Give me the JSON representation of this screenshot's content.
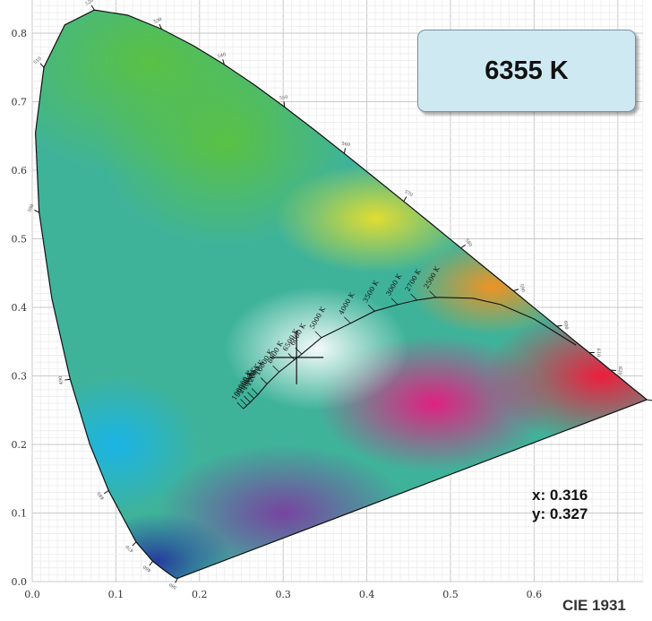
{
  "chart_data": {
    "type": "scatter",
    "title": "",
    "xlabel": "",
    "ylabel": "",
    "xlim": [
      0,
      0.73
    ],
    "ylim": [
      0,
      0.85
    ],
    "x_ticks": [
      "0.0",
      "0.1",
      "0.2",
      "0.3",
      "0.4",
      "0.5",
      "0.6"
    ],
    "y_ticks": [
      "0.0",
      "0.1",
      "0.2",
      "0.3",
      "0.4",
      "0.5",
      "0.6",
      "0.7",
      "0.8"
    ],
    "grid": true,
    "spectral_locus": [
      [
        0.1741,
        0.005
      ],
      [
        0.1738,
        0.0049
      ],
      [
        0.1733,
        0.0048
      ],
      [
        0.1726,
        0.0048
      ],
      [
        0.1714,
        0.0051
      ],
      [
        0.1689,
        0.0069
      ],
      [
        0.1644,
        0.0109
      ],
      [
        0.1566,
        0.0177
      ],
      [
        0.144,
        0.0297
      ],
      [
        0.1241,
        0.0578
      ],
      [
        0.0913,
        0.1327
      ],
      [
        0.0687,
        0.2007
      ],
      [
        0.0454,
        0.295
      ],
      [
        0.0235,
        0.4127
      ],
      [
        0.0082,
        0.5384
      ],
      [
        0.0039,
        0.6548
      ],
      [
        0.0139,
        0.7502
      ],
      [
        0.0389,
        0.812
      ],
      [
        0.0743,
        0.8338
      ],
      [
        0.1142,
        0.8262
      ],
      [
        0.1547,
        0.8059
      ],
      [
        0.1929,
        0.7816
      ],
      [
        0.2296,
        0.7543
      ],
      [
        0.2658,
        0.7243
      ],
      [
        0.3016,
        0.6923
      ],
      [
        0.3373,
        0.6589
      ],
      [
        0.3731,
        0.6245
      ],
      [
        0.4087,
        0.5896
      ],
      [
        0.4441,
        0.5547
      ],
      [
        0.4788,
        0.5202
      ],
      [
        0.5125,
        0.4866
      ],
      [
        0.5448,
        0.4544
      ],
      [
        0.5752,
        0.4242
      ],
      [
        0.6029,
        0.3965
      ],
      [
        0.627,
        0.3725
      ],
      [
        0.6482,
        0.3514
      ],
      [
        0.6658,
        0.334
      ],
      [
        0.6801,
        0.3197
      ],
      [
        0.6915,
        0.3083
      ],
      [
        0.7006,
        0.2993
      ],
      [
        0.7079,
        0.292
      ],
      [
        0.714,
        0.2859
      ],
      [
        0.719,
        0.2809
      ],
      [
        0.723,
        0.277
      ],
      [
        0.726,
        0.274
      ],
      [
        0.7283,
        0.2717
      ],
      [
        0.73,
        0.27
      ],
      [
        0.7347,
        0.2653
      ]
    ],
    "locus_labels": [
      {
        "text": "380",
        "x": 0.1741,
        "y": 0.005
      },
      {
        "text": "460",
        "x": 0.144,
        "y": 0.0297
      },
      {
        "text": "470",
        "x": 0.1241,
        "y": 0.0578
      },
      {
        "text": "480",
        "x": 0.0913,
        "y": 0.1327
      },
      {
        "text": "490",
        "x": 0.0454,
        "y": 0.295
      },
      {
        "text": "500",
        "x": 0.0082,
        "y": 0.5384
      },
      {
        "text": "510",
        "x": 0.0139,
        "y": 0.7502
      },
      {
        "text": "520",
        "x": 0.0743,
        "y": 0.8338
      },
      {
        "text": "530",
        "x": 0.1547,
        "y": 0.8059
      },
      {
        "text": "540",
        "x": 0.2296,
        "y": 0.7543
      },
      {
        "text": "550",
        "x": 0.3016,
        "y": 0.6923
      },
      {
        "text": "560",
        "x": 0.3731,
        "y": 0.6245
      },
      {
        "text": "570",
        "x": 0.4441,
        "y": 0.5547
      },
      {
        "text": "580",
        "x": 0.5125,
        "y": 0.4866
      },
      {
        "text": "590",
        "x": 0.5752,
        "y": 0.4242
      },
      {
        "text": "600",
        "x": 0.627,
        "y": 0.3725
      },
      {
        "text": "610",
        "x": 0.6658,
        "y": 0.334
      },
      {
        "text": "620",
        "x": 0.6915,
        "y": 0.3083
      },
      {
        "text": "700",
        "x": 0.7347,
        "y": 0.2653
      }
    ],
    "planckian_locus": [
      [
        0.2524,
        0.2522
      ],
      [
        0.2565,
        0.2569
      ],
      [
        0.2606,
        0.2615
      ],
      [
        0.265,
        0.2671
      ],
      [
        0.2697,
        0.2727
      ],
      [
        0.2806,
        0.2883
      ],
      [
        0.2951,
        0.3057
      ],
      [
        0.3135,
        0.3236
      ],
      [
        0.3221,
        0.3318
      ],
      [
        0.3457,
        0.3559
      ],
      [
        0.3805,
        0.3768
      ],
      [
        0.4093,
        0.3945
      ],
      [
        0.4369,
        0.4041
      ],
      [
        0.4599,
        0.4106
      ],
      [
        0.4824,
        0.4147
      ],
      [
        0.5,
        0.4141
      ],
      [
        0.5267,
        0.4133
      ],
      [
        0.56,
        0.404
      ],
      [
        0.6,
        0.383
      ],
      [
        0.65,
        0.345
      ]
    ],
    "cct_labels": [
      {
        "text": "100000 K",
        "x": 0.2524,
        "y": 0.2522
      },
      {
        "text": "30000 K",
        "x": 0.2565,
        "y": 0.2569
      },
      {
        "text": "20000 K",
        "x": 0.2606,
        "y": 0.2615
      },
      {
        "text": "15000 K",
        "x": 0.265,
        "y": 0.2671
      },
      {
        "text": "12000 K",
        "x": 0.2697,
        "y": 0.2727
      },
      {
        "text": "10000 K",
        "x": 0.2806,
        "y": 0.2883
      },
      {
        "text": "8000 K",
        "x": 0.2951,
        "y": 0.3057
      },
      {
        "text": "6500 K",
        "x": 0.3135,
        "y": 0.3236
      },
      {
        "text": "6000 K",
        "x": 0.3221,
        "y": 0.3318
      },
      {
        "text": "5000 K",
        "x": 0.3457,
        "y": 0.3559
      },
      {
        "text": "4000 K",
        "x": 0.3805,
        "y": 0.3768
      },
      {
        "text": "3500 K",
        "x": 0.4093,
        "y": 0.3945
      },
      {
        "text": "3000 K",
        "x": 0.4369,
        "y": 0.4041
      },
      {
        "text": "2700 K",
        "x": 0.4599,
        "y": 0.4106
      },
      {
        "text": "2500 K",
        "x": 0.4824,
        "y": 0.4147
      }
    ],
    "point": {
      "x": 0.316,
      "y": 0.327
    }
  },
  "readout": {
    "cct": "6355 K",
    "x_label": "x: 0.316",
    "y_label": "y: 0.327",
    "footer": "CIE 1931"
  }
}
